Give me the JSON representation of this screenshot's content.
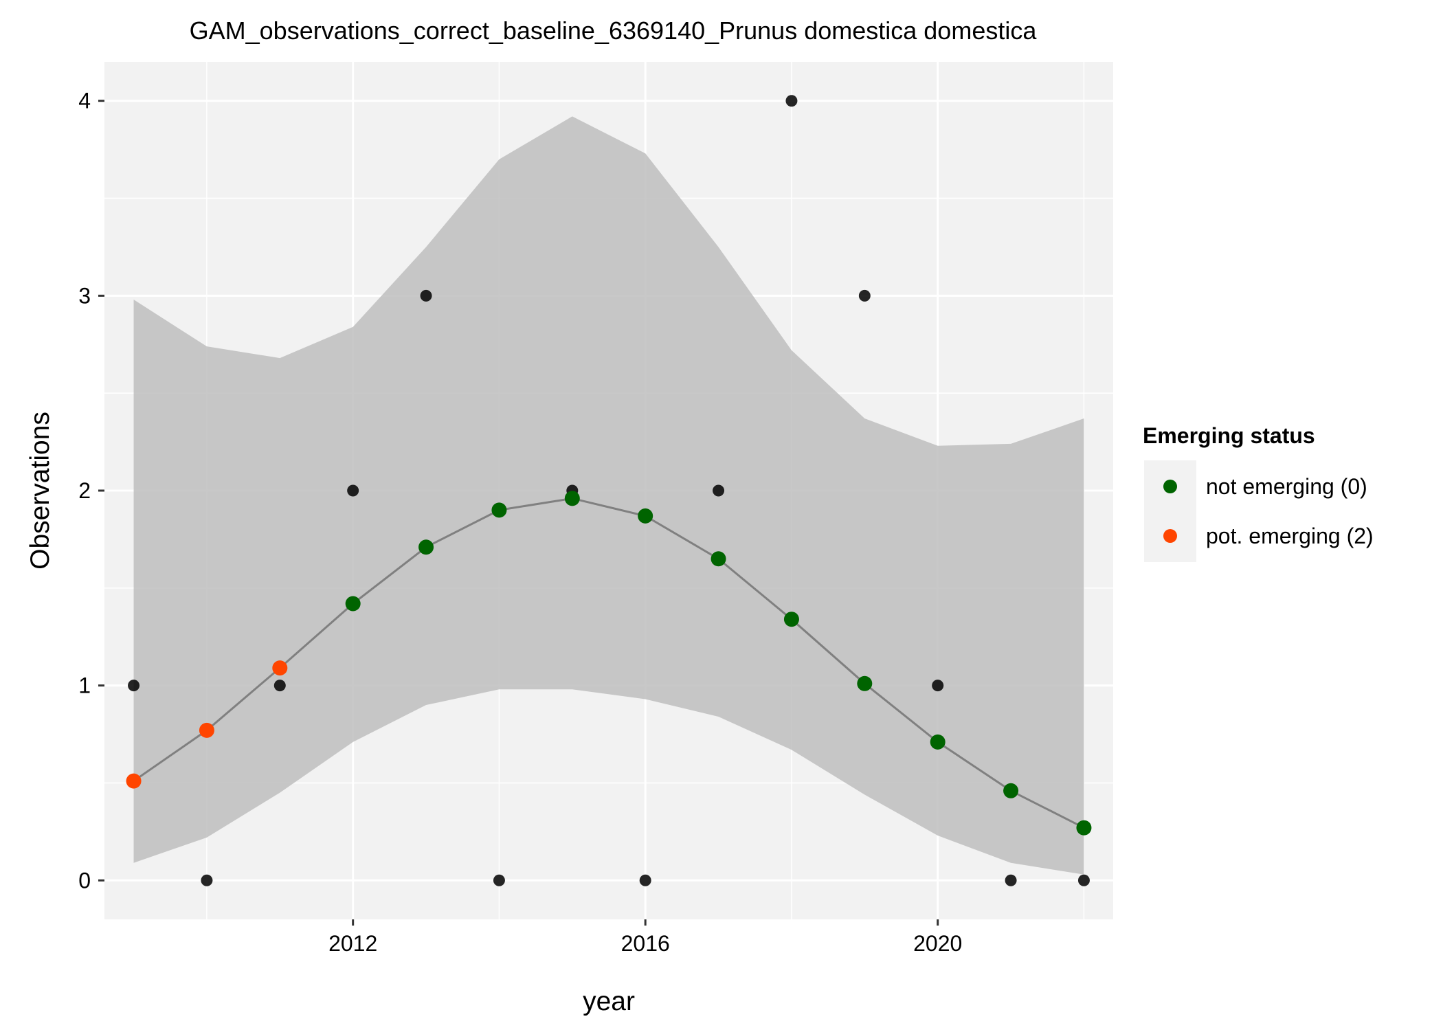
{
  "chart_data": {
    "type": "scatter",
    "title": "GAM_observations_correct_baseline_6369140_Prunus domestica domestica",
    "xlabel": "year",
    "ylabel": "Observations",
    "xlim": [
      2008.6,
      2022.4
    ],
    "ylim": [
      -0.2,
      4.2
    ],
    "x_ticks": [
      2012,
      2016,
      2020
    ],
    "y_ticks": [
      0,
      1,
      2,
      3,
      4
    ],
    "grid": true,
    "legend": {
      "title": "Emerging status",
      "placement": "right",
      "entries": [
        {
          "label": "not emerging (0)",
          "color": "#006400"
        },
        {
          "label": "pot. emerging (2)",
          "color": "#FF4500"
        }
      ]
    },
    "colors": {
      "panel": "#F2F2F2",
      "grid": "#FFFFFF",
      "ribbon": "#BEBEBE",
      "line": "#808080",
      "observed": "#000000",
      "not_emerging": "#006400",
      "pot_emerging": "#FF4500"
    },
    "observed": {
      "x": [
        2009,
        2010,
        2011,
        2012,
        2013,
        2014,
        2015,
        2016,
        2017,
        2018,
        2019,
        2020,
        2021,
        2022
      ],
      "y": [
        1,
        0,
        1,
        2,
        3,
        0,
        2,
        0,
        2,
        4,
        3,
        1,
        0,
        0
      ]
    },
    "fit": {
      "x": [
        2009,
        2010,
        2011,
        2012,
        2013,
        2014,
        2015,
        2016,
        2017,
        2018,
        2019,
        2020,
        2021,
        2022
      ],
      "y": [
        0.51,
        0.77,
        1.09,
        1.42,
        1.71,
        1.9,
        1.96,
        1.87,
        1.65,
        1.34,
        1.01,
        0.71,
        0.46,
        0.27
      ],
      "lower": [
        0.09,
        0.22,
        0.45,
        0.71,
        0.9,
        0.98,
        0.98,
        0.93,
        0.84,
        0.67,
        0.44,
        0.23,
        0.09,
        0.03
      ],
      "upper": [
        2.98,
        2.74,
        2.68,
        2.84,
        3.25,
        3.7,
        3.92,
        3.73,
        3.25,
        2.72,
        2.37,
        2.23,
        2.24,
        2.37
      ],
      "status": [
        2,
        2,
        2,
        0,
        0,
        0,
        0,
        0,
        0,
        0,
        0,
        0,
        0,
        0
      ]
    }
  }
}
